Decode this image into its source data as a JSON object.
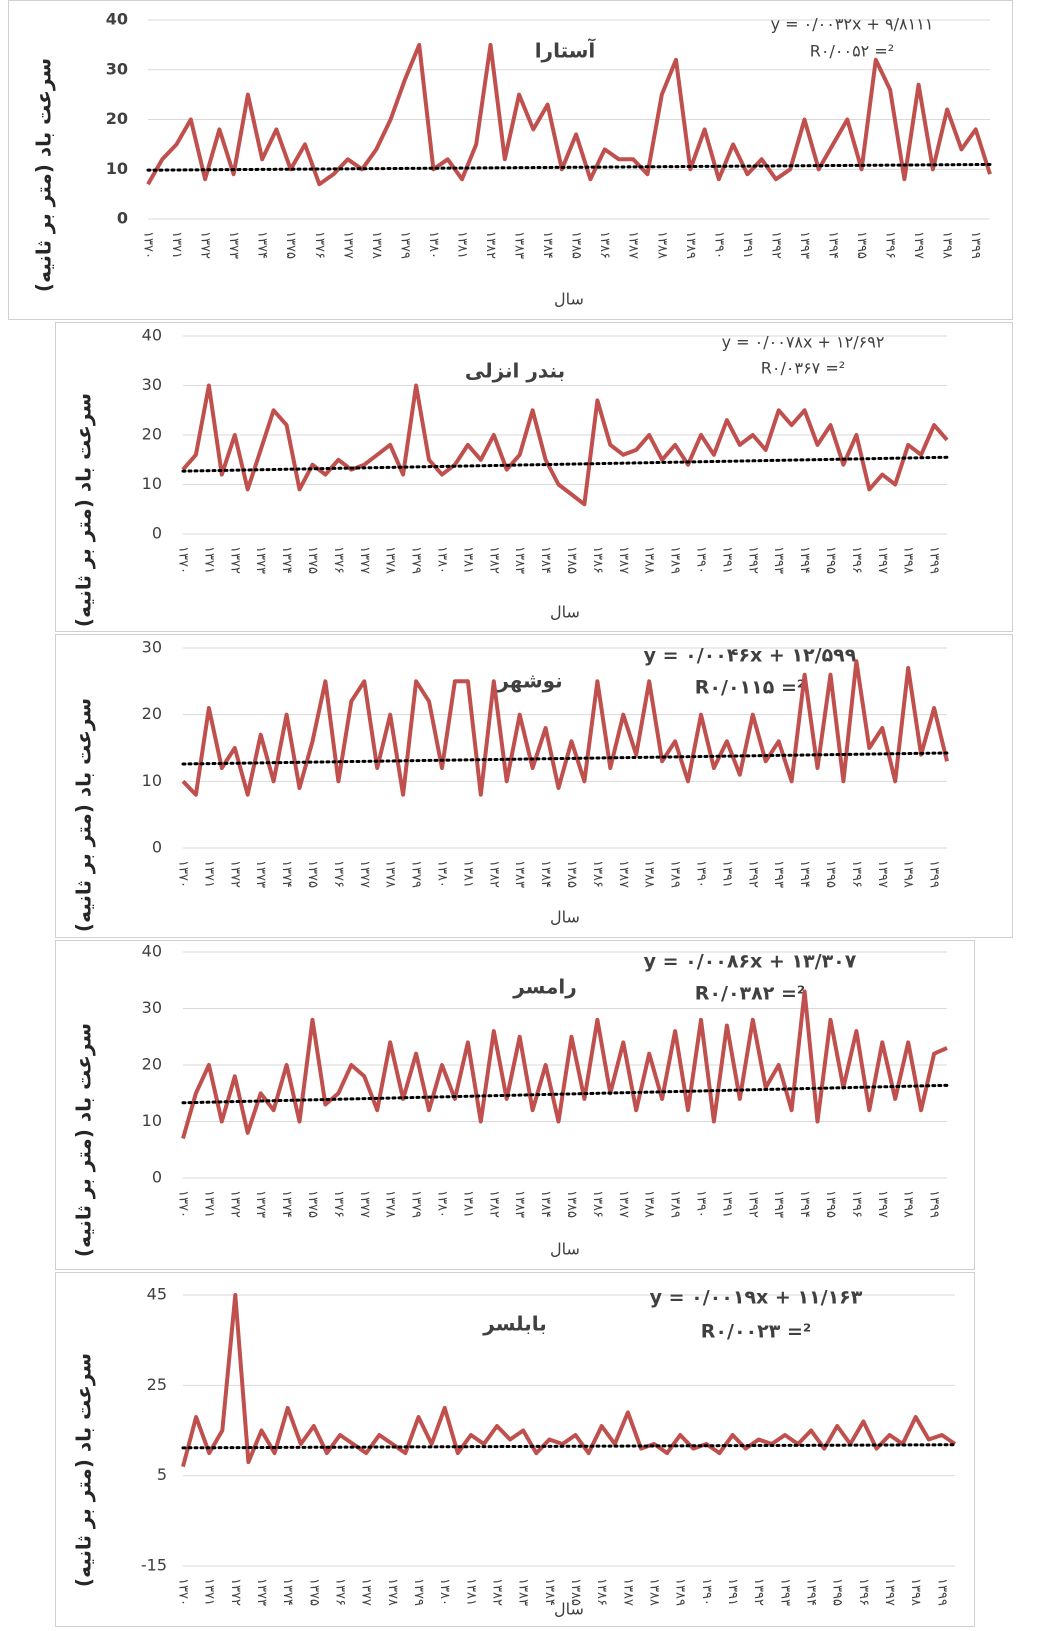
{
  "chart_data": [
    {
      "type": "line",
      "title": "آستارا",
      "equation": "y = ۰/۰۰۳۲x + ۹/۸۱۱۱",
      "r_squared": "R۰/۰۰۵۲ =²",
      "y_label": "سرعت باد (متر بر ثانیه)",
      "x_label": "سال",
      "color": "#c0504d",
      "grid": true,
      "ylim": [
        0,
        40
      ],
      "yticks": [
        0,
        10,
        20,
        30,
        40
      ],
      "trendline": {
        "slope": 0.0032,
        "intercept": 9.8111
      },
      "categories": [
        "۱۳۷۰",
        null,
        "۱۳۷۱",
        null,
        "۱۳۷۲",
        null,
        "۱۳۷۳",
        null,
        "۱۳۷۴",
        null,
        "۱۳۷۵",
        null,
        "۱۳۷۶",
        null,
        "۱۳۷۷",
        null,
        "۱۳۷۸",
        null,
        "۱۳۷۹",
        null,
        "۱۳۸۰",
        null,
        "۱۳۸۱",
        null,
        "۱۳۸۲",
        null,
        "۱۳۸۳",
        null,
        "۱۳۸۴",
        null,
        "۱۳۸۵",
        null,
        "۱۳۸۶",
        null,
        "۱۳۸۷",
        null,
        "۱۳۸۸",
        null,
        "۱۳۸۹",
        null,
        "۱۳۹۰",
        null,
        "۱۳۹۱",
        null,
        "۱۳۹۲",
        null,
        "۱۳۹۳",
        null,
        "۱۳۹۴",
        null,
        "۱۳۹۵",
        null,
        "۱۳۹۶",
        null,
        "۱۳۹۷",
        null,
        "۱۳۹۸",
        null,
        "۱۳۹۹",
        null
      ],
      "values": [
        7,
        12,
        15,
        20,
        8,
        18,
        9,
        25,
        12,
        18,
        10,
        15,
        7,
        9,
        12,
        10,
        14,
        20,
        28,
        35,
        10,
        12,
        8,
        15,
        35,
        12,
        25,
        18,
        23,
        10,
        17,
        8,
        14,
        12,
        12,
        9,
        25,
        32,
        10,
        18,
        8,
        15,
        9,
        12,
        8,
        10,
        20,
        10,
        15,
        20,
        10,
        32,
        26,
        8,
        27,
        10,
        22,
        14,
        18,
        9
      ]
    },
    {
      "type": "line",
      "title": "بندر انزلی",
      "equation": "y = ۰/۰۰۷۸x + ۱۲/۶۹۲",
      "r_squared": "R۰/۰۳۶۷ =²",
      "y_label": "سرعت باد (متر بر ثانیه)",
      "x_label": "سال",
      "color": "#c0504d",
      "grid": true,
      "ylim": [
        0,
        40
      ],
      "yticks": [
        0,
        10,
        20,
        30,
        40
      ],
      "trendline": {
        "slope": 0.0078,
        "intercept": 12.692
      },
      "categories": [
        "۱۳۷۰",
        null,
        "۱۳۷۱",
        null,
        "۱۳۷۲",
        null,
        "۱۳۷۳",
        null,
        "۱۳۷۴",
        null,
        "۱۳۷۵",
        null,
        "۱۳۷۶",
        null,
        "۱۳۷۷",
        null,
        "۱۳۷۸",
        null,
        "۱۳۷۹",
        null,
        "۱۳۸۰",
        null,
        "۱۳۸۱",
        null,
        "۱۳۸۲",
        null,
        "۱۳۸۳",
        null,
        "۱۳۸۴",
        null,
        "۱۳۸۵",
        null,
        "۱۳۸۶",
        null,
        "۱۳۸۷",
        null,
        "۱۳۸۸",
        null,
        "۱۳۸۹",
        null,
        "۱۳۹۰",
        null,
        "۱۳۹۱",
        null,
        "۱۳۹۲",
        null,
        "۱۳۹۳",
        null,
        "۱۳۹۴",
        null,
        "۱۳۹۵",
        null,
        "۱۳۹۶",
        null,
        "۱۳۹۷",
        null,
        "۱۳۹۸",
        null,
        "۱۳۹۹",
        null
      ],
      "values": [
        13,
        16,
        30,
        12,
        20,
        9,
        17,
        25,
        22,
        9,
        14,
        12,
        15,
        13,
        14,
        16,
        18,
        12,
        30,
        15,
        12,
        14,
        18,
        15,
        20,
        13,
        16,
        25,
        15,
        10,
        8,
        6,
        27,
        18,
        16,
        17,
        20,
        15,
        18,
        14,
        20,
        16,
        23,
        18,
        20,
        17,
        25,
        22,
        25,
        18,
        22,
        14,
        20,
        9,
        12,
        10,
        18,
        16,
        22,
        19
      ]
    },
    {
      "type": "line",
      "title": "نوشهر",
      "equation": "y = ۰/۰۰۴۶x + ۱۲/۵۹۹",
      "r_squared": "R۰/۰۱۱۵ =²",
      "y_label": "سرعت باد (متر بر ثانیه)",
      "x_label": "سال",
      "color": "#c0504d",
      "grid": true,
      "ylim": [
        0,
        30
      ],
      "yticks": [
        0,
        10,
        20,
        30
      ],
      "trendline": {
        "slope": 0.0046,
        "intercept": 12.599
      },
      "categories": [
        "۱۳۷۰",
        null,
        "۱۳۷۱",
        null,
        "۱۳۷۲",
        null,
        "۱۳۷۳",
        null,
        "۱۳۷۴",
        null,
        "۱۳۷۵",
        null,
        "۱۳۷۶",
        null,
        "۱۳۷۷",
        null,
        "۱۳۷۸",
        null,
        "۱۳۷۹",
        null,
        "۱۳۸۰",
        null,
        "۱۳۸۱",
        null,
        "۱۳۸۲",
        null,
        "۱۳۸۳",
        null,
        "۱۳۸۴",
        null,
        "۱۳۸۵",
        null,
        "۱۳۸۶",
        null,
        "۱۳۸۷",
        null,
        "۱۳۸۸",
        null,
        "۱۳۸۹",
        null,
        "۱۳۹۰",
        null,
        "۱۳۹۱",
        null,
        "۱۳۹۲",
        null,
        "۱۳۹۳",
        null,
        "۱۳۹۴",
        null,
        "۱۳۹۵",
        null,
        "۱۳۹۶",
        null,
        "۱۳۹۷",
        null,
        "۱۳۹۸",
        null,
        "۱۳۹۹",
        null
      ],
      "values": [
        10,
        8,
        21,
        12,
        15,
        8,
        17,
        10,
        20,
        9,
        16,
        25,
        10,
        22,
        25,
        12,
        20,
        8,
        25,
        22,
        12,
        25,
        25,
        8,
        25,
        10,
        20,
        12,
        18,
        9,
        16,
        10,
        25,
        12,
        20,
        14,
        25,
        13,
        16,
        10,
        20,
        12,
        16,
        11,
        20,
        13,
        16,
        10,
        26,
        12,
        26,
        10,
        28,
        15,
        18,
        10,
        27,
        14,
        21,
        13
      ]
    },
    {
      "type": "line",
      "title": "رامسر",
      "equation": "y = ۰/۰۰۸۶x + ۱۳/۳۰۷",
      "r_squared": "R۰/۰۳۸۲ =²",
      "y_label": "سرعت باد (متر بر ثانیه)",
      "x_label": "سال",
      "color": "#c0504d",
      "grid": true,
      "ylim": [
        0,
        40
      ],
      "yticks": [
        0,
        10,
        20,
        30,
        40
      ],
      "trendline": {
        "slope": 0.0086,
        "intercept": 13.307
      },
      "categories": [
        "۱۳۷۰",
        null,
        "۱۳۷۱",
        null,
        "۱۳۷۲",
        null,
        "۱۳۷۳",
        null,
        "۱۳۷۴",
        null,
        "۱۳۷۵",
        null,
        "۱۳۷۶",
        null,
        "۱۳۷۷",
        null,
        "۱۳۷۸",
        null,
        "۱۳۷۹",
        null,
        "۱۳۸۰",
        null,
        "۱۳۸۱",
        null,
        "۱۳۸۲",
        null,
        "۱۳۸۳",
        null,
        "۱۳۸۴",
        null,
        "۱۳۸۵",
        null,
        "۱۳۸۶",
        null,
        "۱۳۸۷",
        null,
        "۱۳۸۸",
        null,
        "۱۳۸۹",
        null,
        "۱۳۹۰",
        null,
        "۱۳۹۱",
        null,
        "۱۳۹۲",
        null,
        "۱۳۹۳",
        null,
        "۱۳۹۴",
        null,
        "۱۳۹۵",
        null,
        "۱۳۹۶",
        null,
        "۱۳۹۷",
        null,
        "۱۳۹۸",
        null,
        "۱۳۹۹",
        null
      ],
      "values": [
        7,
        15,
        20,
        10,
        18,
        8,
        15,
        12,
        20,
        10,
        28,
        13,
        15,
        20,
        18,
        12,
        24,
        14,
        22,
        12,
        20,
        14,
        24,
        10,
        26,
        14,
        25,
        12,
        20,
        10,
        25,
        14,
        28,
        15,
        24,
        12,
        22,
        14,
        26,
        12,
        28,
        10,
        27,
        14,
        28,
        16,
        20,
        12,
        33,
        10,
        28,
        16,
        26,
        12,
        24,
        14,
        24,
        12,
        22,
        23
      ]
    },
    {
      "type": "line",
      "title": "بابلسر",
      "equation": "y = ۰/۰۰۱۹x + ۱۱/۱۶۳",
      "r_squared": "R۰/۰۰۲۳ =²",
      "y_label": "سرعت باد (متر بر ثانیه)",
      "x_label": "سال",
      "color": "#c0504d",
      "grid": true,
      "ylim": [
        -15,
        45
      ],
      "yticks": [
        -15,
        5,
        25,
        45
      ],
      "trendline": {
        "slope": 0.0019,
        "intercept": 11.163
      },
      "categories": [
        "۱۳۷۰",
        null,
        "۱۳۷۱",
        null,
        "۱۳۷۲",
        null,
        "۱۳۷۳",
        null,
        "۱۳۷۴",
        null,
        "۱۳۷۵",
        null,
        "۱۳۷۶",
        null,
        "۱۳۷۷",
        null,
        "۱۳۷۸",
        null,
        "۱۳۷۹",
        null,
        "۱۳۸۰",
        null,
        "۱۳۸۱",
        null,
        "۱۳۸۲",
        null,
        "۱۳۸۳",
        null,
        "۱۳۸۴",
        null,
        "۱۳۸۵",
        null,
        "۱۳۸۶",
        null,
        "۱۳۸۷",
        null,
        "۱۳۸۸",
        null,
        "۱۳۸۹",
        null,
        "۱۳۹۰",
        null,
        "۱۳۹۱",
        null,
        "۱۳۹۲",
        null,
        "۱۳۹۳",
        null,
        "۱۳۹۴",
        null,
        "۱۳۹۵",
        null,
        "۱۳۹۶",
        null,
        "۱۳۹۷",
        null,
        "۱۳۹۸",
        null,
        "۱۳۹۹",
        null
      ],
      "values": [
        7,
        18,
        10,
        15,
        45,
        8,
        15,
        10,
        20,
        12,
        16,
        10,
        14,
        12,
        10,
        14,
        12,
        10,
        18,
        12,
        20,
        10,
        14,
        12,
        16,
        13,
        15,
        10,
        13,
        12,
        14,
        10,
        16,
        12,
        19,
        11,
        12,
        10,
        14,
        11,
        12,
        10,
        14,
        11,
        13,
        12,
        14,
        12,
        15,
        11,
        16,
        12,
        17,
        11,
        14,
        12,
        18,
        13,
        14,
        12
      ]
    }
  ]
}
